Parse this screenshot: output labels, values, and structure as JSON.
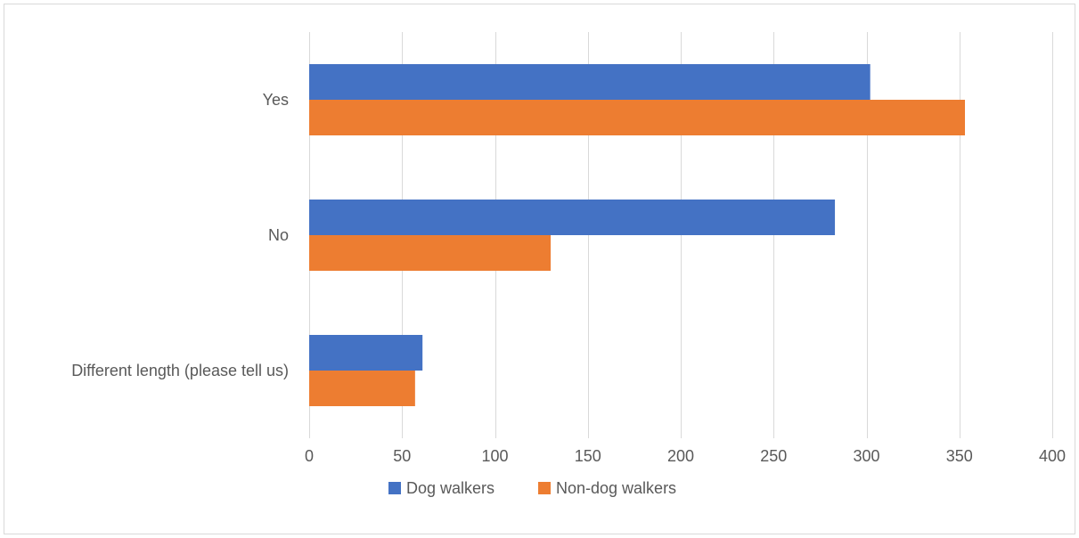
{
  "chart_data": {
    "type": "bar",
    "orientation": "horizontal",
    "categories": [
      "Yes",
      "No",
      "Different length (please tell us)"
    ],
    "series": [
      {
        "name": "Dog walkers",
        "color": "#4472c4",
        "values": [
          302,
          283,
          61
        ]
      },
      {
        "name": "Non-dog walkers",
        "color": "#ed7d31",
        "values": [
          353,
          130,
          57
        ]
      }
    ],
    "xlim": [
      0,
      400
    ],
    "xticks": [
      0,
      50,
      100,
      150,
      200,
      250,
      300,
      350,
      400
    ],
    "grid": true,
    "legend": "bottom-center"
  }
}
